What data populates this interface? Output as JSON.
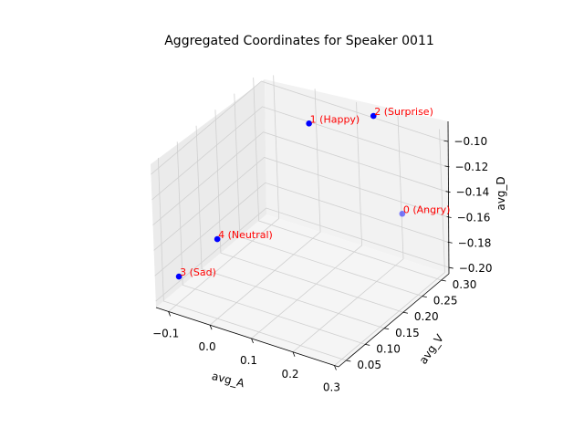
{
  "chart_data": {
    "type": "scatter",
    "projection": "3d",
    "title": "Aggregated Coordinates for Speaker 0011",
    "xlabel": "avg_A",
    "ylabel": "avg_V",
    "zlabel": "avg_D",
    "xlim": [
      -0.13,
      0.31
    ],
    "ylim": [
      0.03,
      0.32
    ],
    "zlim": [
      -0.205,
      -0.092
    ],
    "x_ticks": [
      -0.1,
      0.0,
      0.1,
      0.2,
      0.3
    ],
    "x_tick_labels": [
      "−0.1",
      "0.0",
      "0.1",
      "0.2",
      "0.3"
    ],
    "y_ticks": [
      0.05,
      0.1,
      0.15,
      0.2,
      0.25,
      0.3
    ],
    "y_tick_labels": [
      "0.05",
      "0.10",
      "0.15",
      "0.20",
      "0.25",
      "0.30"
    ],
    "z_ticks": [
      -0.2,
      -0.18,
      -0.16,
      -0.14,
      -0.12,
      -0.1
    ],
    "z_tick_labels": [
      "−0.20",
      "−0.18",
      "−0.16",
      "−0.14",
      "−0.12",
      "−0.10"
    ],
    "grid": true,
    "point_color": "#0000ff",
    "label_color": "#ff0000",
    "points": [
      {
        "label": "0 (Angry)",
        "x": 0.24,
        "y": 0.28,
        "z": -0.155
      },
      {
        "label": "1 (Happy)",
        "x": 0.04,
        "y": 0.26,
        "z": -0.1
      },
      {
        "label": "2 (Surprise)",
        "x": 0.15,
        "y": 0.31,
        "z": -0.095
      },
      {
        "label": "3 (Sad)",
        "x": -0.1,
        "y": 0.06,
        "z": -0.185
      },
      {
        "label": "4 (Neutral)",
        "x": -0.07,
        "y": 0.13,
        "z": -0.17
      }
    ]
  }
}
